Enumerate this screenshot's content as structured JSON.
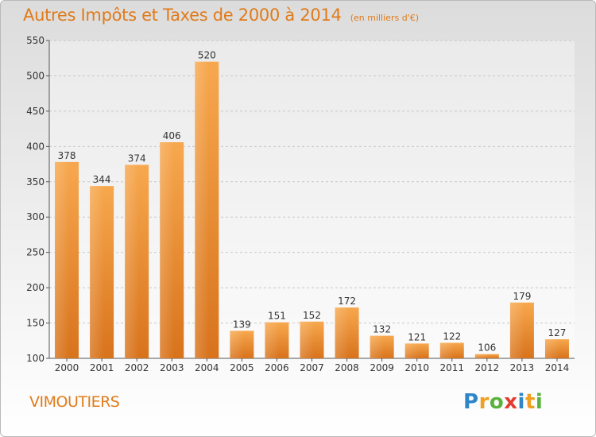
{
  "header": {
    "title": "Autres Impôts et Taxes de 2000 à 2014",
    "unit": "(en milliers d'€)"
  },
  "footer": {
    "place": "VIMOUTIERS",
    "logo_letters": [
      "P",
      "r",
      "o",
      "x",
      "i",
      "t",
      "i"
    ],
    "logo_colors": [
      "#2e86c8",
      "#f0a01e",
      "#59b23d",
      "#e63b2e",
      "#2e86c8",
      "#f0a01e",
      "#59b23d"
    ]
  },
  "colors": {
    "accent": "#e07b1a",
    "bar_light": "#f7a84e",
    "bar_dark": "#d8731c",
    "grid": "#c8c8c8"
  },
  "chart_data": {
    "type": "bar",
    "categories": [
      "2000",
      "2001",
      "2002",
      "2003",
      "2004",
      "2005",
      "2006",
      "2007",
      "2008",
      "2009",
      "2010",
      "2011",
      "2012",
      "2013",
      "2014"
    ],
    "values": [
      378,
      344,
      374,
      406,
      520,
      139,
      151,
      152,
      172,
      132,
      121,
      122,
      106,
      179,
      127
    ],
    "yticks": [
      100,
      150,
      200,
      250,
      300,
      350,
      400,
      450,
      500,
      550
    ],
    "ylim": [
      100,
      550
    ],
    "grid": true,
    "data_labels": true
  }
}
